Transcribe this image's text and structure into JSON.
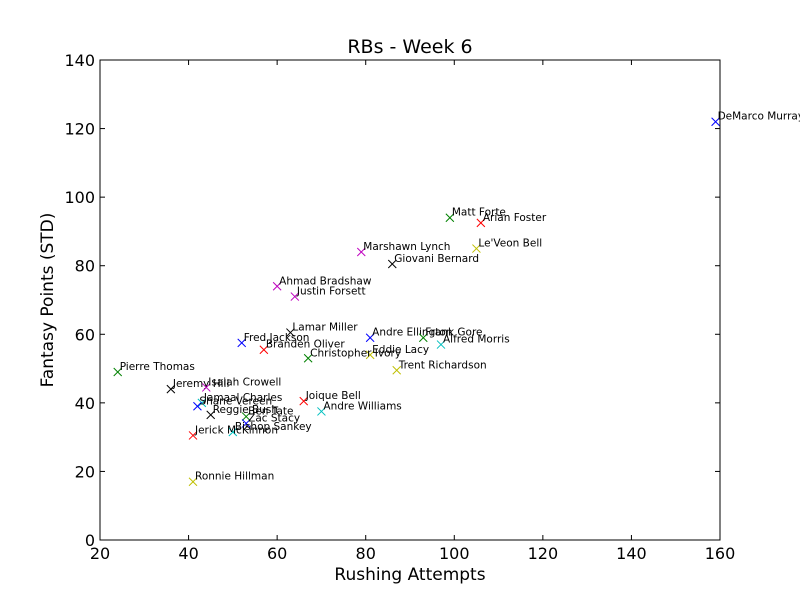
{
  "chart_data": {
    "type": "scatter",
    "title": "RBs - Week 6",
    "xlabel": "Rushing Attempts",
    "ylabel": "Fantasy Points (STD)",
    "xlim": [
      20,
      160
    ],
    "ylim": [
      0,
      140
    ],
    "xticks": [
      20,
      40,
      60,
      80,
      100,
      120,
      140,
      160
    ],
    "yticks": [
      0,
      20,
      40,
      60,
      80,
      100,
      120,
      140
    ],
    "grid": false,
    "marker": "x",
    "points": [
      {
        "name": "DeMarco Murray",
        "x": 159,
        "y": 122,
        "color": "#0000ff"
      },
      {
        "name": "Matt Forte",
        "x": 99,
        "y": 94,
        "color": "#008000"
      },
      {
        "name": "Arian Foster",
        "x": 106,
        "y": 92.5,
        "color": "#ff0000"
      },
      {
        "name": "Le'Veon Bell",
        "x": 105,
        "y": 85,
        "color": "#bfbf00"
      },
      {
        "name": "Marshawn Lynch",
        "x": 79,
        "y": 84,
        "color": "#bf00bf"
      },
      {
        "name": "Giovani Bernard",
        "x": 86,
        "y": 80.5,
        "color": "#000000"
      },
      {
        "name": "Ahmad Bradshaw",
        "x": 60,
        "y": 74,
        "color": "#bf00bf"
      },
      {
        "name": "Justin Forsett",
        "x": 64,
        "y": 71,
        "color": "#bf00bf"
      },
      {
        "name": "Lamar Miller",
        "x": 63,
        "y": 60.5,
        "color": "#000000"
      },
      {
        "name": "Andre Ellington",
        "x": 81,
        "y": 59,
        "color": "#0000ff"
      },
      {
        "name": "Frank Gore",
        "x": 93,
        "y": 59,
        "color": "#008000"
      },
      {
        "name": "Fred Jackson",
        "x": 52,
        "y": 57.5,
        "color": "#0000ff"
      },
      {
        "name": "Alfred Morris",
        "x": 97,
        "y": 57,
        "color": "#00bfbf"
      },
      {
        "name": "Branden Oliver",
        "x": 57,
        "y": 55.5,
        "color": "#ff0000"
      },
      {
        "name": "Eddie Lacy",
        "x": 81,
        "y": 54,
        "color": "#bfbf00"
      },
      {
        "name": "Christopher Ivory",
        "x": 67,
        "y": 53,
        "color": "#008000"
      },
      {
        "name": "Trent Richardson",
        "x": 87,
        "y": 49.5,
        "color": "#bfbf00"
      },
      {
        "name": "Pierre Thomas",
        "x": 24,
        "y": 49,
        "color": "#008000"
      },
      {
        "name": "Jeremy Hill",
        "x": 36,
        "y": 44,
        "color": "#000000"
      },
      {
        "name": "Isaiah Crowell",
        "x": 44,
        "y": 44.5,
        "color": "#bf00bf"
      },
      {
        "name": "Joique Bell",
        "x": 66,
        "y": 40.5,
        "color": "#ff0000"
      },
      {
        "name": "Jamaal Charles",
        "x": 43,
        "y": 40,
        "color": "#00bfbf"
      },
      {
        "name": "Shane Vereen",
        "x": 42,
        "y": 39,
        "color": "#0000ff"
      },
      {
        "name": "Andre Williams",
        "x": 70,
        "y": 37.5,
        "color": "#00bfbf"
      },
      {
        "name": "Reggie Bush",
        "x": 45,
        "y": 36.5,
        "color": "#000000"
      },
      {
        "name": "Ben Tate",
        "x": 53,
        "y": 36,
        "color": "#008000"
      },
      {
        "name": "Zac Stacy",
        "x": 53,
        "y": 34,
        "color": "#0000ff"
      },
      {
        "name": "Bishop Sankey",
        "x": 50,
        "y": 31.5,
        "color": "#00bfbf"
      },
      {
        "name": "Jerick McKinnon",
        "x": 41,
        "y": 30.5,
        "color": "#ff0000"
      },
      {
        "name": "Ronnie Hillman",
        "x": 41,
        "y": 17,
        "color": "#bfbf00"
      }
    ]
  }
}
